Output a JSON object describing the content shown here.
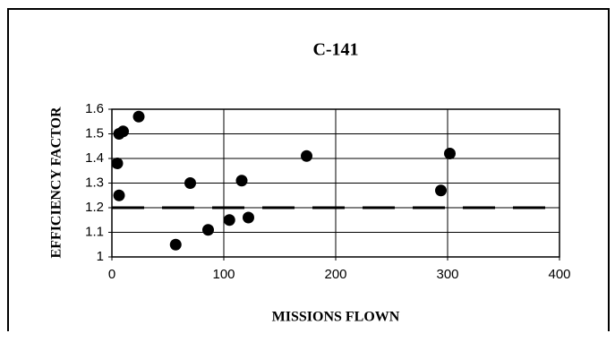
{
  "chart_data": {
    "type": "scatter",
    "title": "C-141",
    "x_label": "MISSIONS FLOWN",
    "y_label": "EFFICIENCY FACTOR",
    "x": [
      4.8,
      6.4,
      10,
      6.4,
      24,
      57,
      70,
      86,
      105,
      116,
      122,
      174,
      294,
      302
    ],
    "values": [
      1.38,
      1.5,
      1.51,
      1.25,
      1.57,
      1.05,
      1.3,
      1.11,
      1.15,
      1.31,
      1.16,
      1.41,
      1.27,
      1.42
    ],
    "color": "#000000",
    "reference_line": 1.2,
    "xlim": [
      0,
      400
    ],
    "xticks": [
      0,
      100,
      200,
      300,
      400
    ],
    "ylim": [
      1,
      1.6
    ],
    "yticks": [
      1,
      1.1,
      1.2,
      1.3,
      1.4,
      1.5,
      1.6
    ],
    "grid": true
  }
}
